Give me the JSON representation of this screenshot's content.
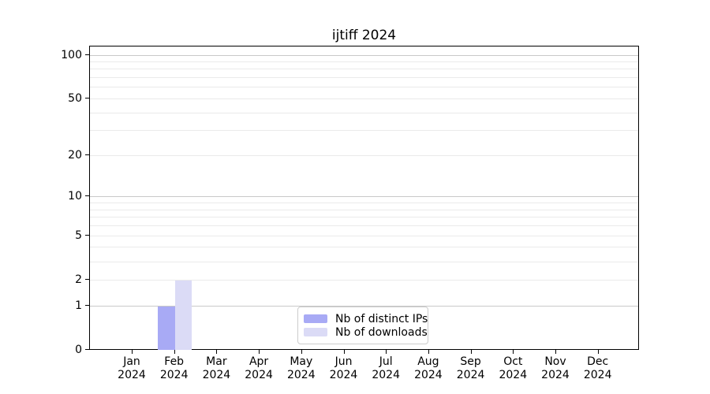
{
  "chart_data": {
    "type": "bar",
    "title": "ijtiff 2024",
    "year_label": "2024",
    "months": [
      "Jan",
      "Feb",
      "Mar",
      "Apr",
      "May",
      "Jun",
      "Jul",
      "Aug",
      "Sep",
      "Oct",
      "Nov",
      "Dec"
    ],
    "series": [
      {
        "name": "Nb of distinct IPs",
        "color": "#a8aaf5",
        "values": [
          0,
          1,
          0,
          0,
          0,
          0,
          0,
          0,
          0,
          0,
          0,
          0
        ]
      },
      {
        "name": "Nb of downloads",
        "color": "#dbdbf6",
        "values": [
          0,
          2,
          0,
          0,
          0,
          0,
          0,
          0,
          0,
          0,
          0,
          0
        ]
      }
    ],
    "xlabel": "",
    "ylabel": "",
    "yscale": "log1p",
    "yticks": [
      0,
      1,
      2,
      5,
      10,
      20,
      50,
      100
    ],
    "major_gridlines": [
      1,
      10,
      100
    ],
    "minor_gridlines": [
      2,
      3,
      4,
      5,
      6,
      7,
      8,
      9,
      20,
      30,
      40,
      50,
      60,
      70,
      80,
      90
    ],
    "ylim": [
      0,
      115
    ],
    "grid": true,
    "legend_position": "lower center"
  },
  "colors": {
    "axis": "#000000",
    "major_grid": "#c9c9c9",
    "minor_grid": "#eaeaea",
    "legend_border": "#cccccc",
    "background": "#ffffff"
  }
}
